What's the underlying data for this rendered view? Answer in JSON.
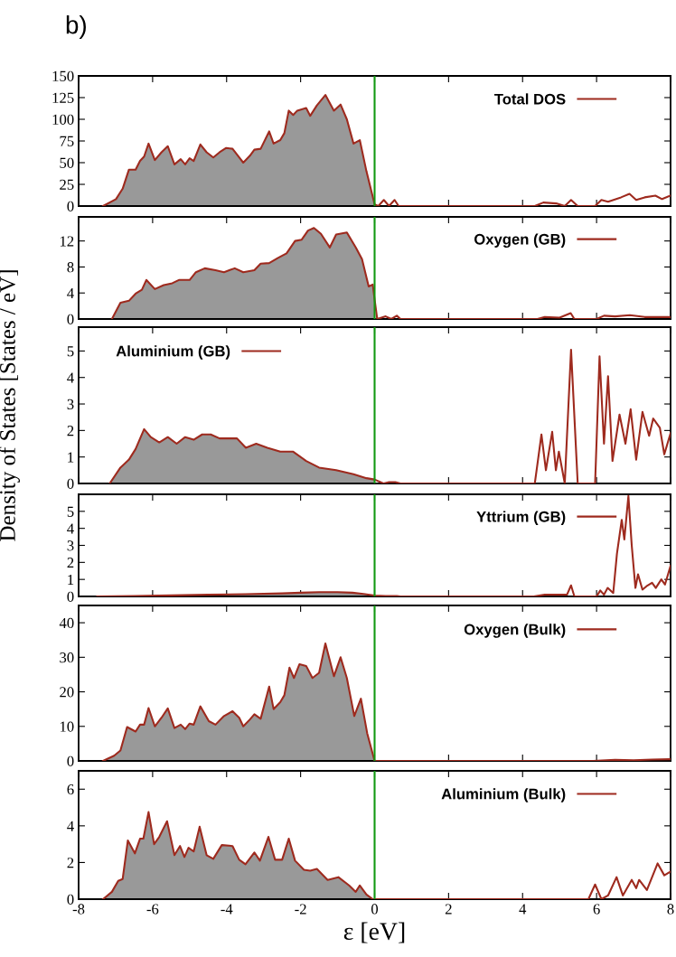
{
  "chart_data": [
    {
      "type": "line",
      "annotations": [
        "b)"
      ],
      "xlim": [
        -8,
        8
      ],
      "xticks": [
        -8,
        -6,
        -4,
        -2,
        0,
        2,
        4,
        6,
        8
      ],
      "ylim": [
        0,
        150
      ],
      "yticks": [
        0,
        25,
        50,
        75,
        100,
        125,
        150
      ],
      "tick_labels": "y",
      "legend": "top right",
      "grid": false,
      "ref_lines": [
        {
          "axis": "x",
          "value": 0,
          "color": "#119911"
        }
      ],
      "series": [
        {
          "type": "area",
          "color": "#999999",
          "x": [
            -7.34,
            -6.99,
            -6.81,
            -6.64,
            -6.46,
            -6.34,
            -6.23,
            -6.11,
            -5.94,
            -5.76,
            -5.59,
            -5.41,
            -5.24,
            -5.12,
            -5.0,
            -4.89,
            -4.71,
            -4.54,
            -4.36,
            -4.19,
            -4.01,
            -3.84,
            -3.66,
            -3.55,
            -3.37,
            -3.25,
            -3.08,
            -2.85,
            -2.73,
            -2.55,
            -2.44,
            -2.32,
            -2.2,
            -2.09,
            -1.85,
            -1.74,
            -1.56,
            -1.33,
            -1.1,
            -0.92,
            -0.75,
            -0.57,
            -0.4,
            -0.22,
            0.0
          ],
          "values": [
            0,
            8,
            20,
            42,
            42,
            52,
            57,
            72,
            53,
            62,
            69,
            48,
            54,
            48,
            55,
            52,
            71,
            62,
            56,
            62,
            67,
            66,
            56,
            50,
            58,
            65,
            66,
            86,
            72,
            76,
            84,
            110,
            105,
            110,
            113,
            104,
            116,
            128,
            110,
            117,
            100,
            72,
            76,
            40,
            2
          ]
        },
        {
          "name": "Total DOS",
          "color": "#9e2a1e",
          "x": [
            -7.34,
            -6.99,
            -6.81,
            -6.64,
            -6.46,
            -6.34,
            -6.23,
            -6.11,
            -5.94,
            -5.76,
            -5.59,
            -5.41,
            -5.24,
            -5.12,
            -5.0,
            -4.89,
            -4.71,
            -4.54,
            -4.36,
            -4.19,
            -4.01,
            -3.84,
            -3.66,
            -3.55,
            -3.37,
            -3.25,
            -3.08,
            -2.85,
            -2.73,
            -2.55,
            -2.44,
            -2.32,
            -2.2,
            -2.09,
            -1.85,
            -1.74,
            -1.56,
            -1.33,
            -1.1,
            -0.92,
            -0.75,
            -0.57,
            -0.4,
            -0.22,
            0.0,
            0.1,
            0.25,
            0.39,
            0.54,
            0.65,
            4.33,
            4.56,
            4.91,
            5.14,
            5.31,
            5.49,
            5.96,
            6.13,
            6.31,
            6.66,
            6.89,
            7.07,
            7.3,
            7.59,
            7.77,
            8.0
          ],
          "values": [
            0,
            8,
            20,
            42,
            42,
            52,
            57,
            72,
            53,
            62,
            69,
            48,
            54,
            48,
            55,
            52,
            71,
            62,
            56,
            62,
            67,
            66,
            56,
            50,
            58,
            65,
            66,
            86,
            72,
            76,
            84,
            110,
            105,
            110,
            113,
            104,
            116,
            128,
            110,
            117,
            100,
            72,
            76,
            40,
            2,
            0,
            7,
            0,
            7,
            0,
            0,
            4,
            3,
            0,
            7,
            0,
            0,
            7,
            5,
            10,
            14,
            7,
            10,
            12,
            8,
            12
          ]
        }
      ]
    },
    {
      "type": "line",
      "xlim": [
        -8,
        8
      ],
      "xticks": [
        -8,
        -6,
        -4,
        -2,
        0,
        2,
        4,
        6,
        8
      ],
      "ylim": [
        0,
        15.7
      ],
      "yticks": [
        0,
        4,
        8,
        12
      ],
      "tick_labels": "y",
      "legend": "top right",
      "grid": false,
      "ref_lines": [
        {
          "axis": "x",
          "value": 0,
          "color": "#119911"
        }
      ],
      "series": [
        {
          "type": "area",
          "color": "#999999",
          "x": [
            -7.1,
            -6.87,
            -6.64,
            -6.46,
            -6.29,
            -6.17,
            -5.94,
            -5.7,
            -5.47,
            -5.29,
            -5.0,
            -4.83,
            -4.59,
            -4.3,
            -4.07,
            -3.78,
            -3.55,
            -3.25,
            -3.08,
            -2.85,
            -2.61,
            -2.38,
            -2.15,
            -1.97,
            -1.8,
            -1.64,
            -1.45,
            -1.21,
            -1.04,
            -0.75,
            -0.51,
            -0.34,
            -0.16,
            -0.05,
            0.0
          ],
          "values": [
            0,
            2.5,
            2.8,
            3.9,
            4.5,
            6.0,
            4.6,
            5.2,
            5.5,
            6.0,
            6.0,
            7.2,
            7.8,
            7.5,
            7.2,
            7.8,
            7.2,
            7.5,
            8.5,
            8.6,
            9.4,
            10.1,
            12.0,
            12.2,
            13.6,
            14.0,
            13.1,
            11.0,
            13.0,
            13.3,
            11.0,
            9.2,
            5.0,
            5.3,
            3.0
          ]
        },
        {
          "name": "Oxygen (GB)",
          "color": "#9e2a1e",
          "x": [
            -7.1,
            -6.87,
            -6.64,
            -6.46,
            -6.29,
            -6.17,
            -5.94,
            -5.7,
            -5.47,
            -5.29,
            -5.0,
            -4.83,
            -4.59,
            -4.3,
            -4.07,
            -3.78,
            -3.55,
            -3.25,
            -3.08,
            -2.85,
            -2.61,
            -2.38,
            -2.15,
            -1.97,
            -1.8,
            -1.64,
            -1.45,
            -1.21,
            -1.04,
            -0.75,
            -0.51,
            -0.34,
            -0.16,
            -0.05,
            0.0,
            0.07,
            0.3,
            0.45,
            0.6,
            0.7,
            4.4,
            4.6,
            5.0,
            5.3,
            5.4,
            6.0,
            6.2,
            6.5,
            6.9,
            7.3,
            8.0
          ],
          "values": [
            0,
            2.5,
            2.8,
            3.9,
            4.5,
            6.0,
            4.6,
            5.2,
            5.5,
            6.0,
            6.0,
            7.2,
            7.8,
            7.5,
            7.2,
            7.8,
            7.2,
            7.5,
            8.5,
            8.6,
            9.4,
            10.1,
            12.0,
            12.2,
            13.6,
            14.0,
            13.1,
            11.0,
            13.0,
            13.3,
            11.0,
            9.2,
            5.0,
            5.3,
            3.0,
            0,
            0.4,
            0,
            0.5,
            0,
            0,
            0.3,
            0.2,
            0.9,
            0,
            0,
            0.5,
            0.4,
            0.6,
            0.3,
            0.3
          ]
        }
      ]
    },
    {
      "type": "line",
      "ylabel": "Density of States [States / eV]",
      "xlim": [
        -8,
        8
      ],
      "xticks": [
        -8,
        -6,
        -4,
        -2,
        0,
        2,
        4,
        6,
        8
      ],
      "ylim": [
        0,
        5.9
      ],
      "yticks": [
        0,
        1,
        2,
        3,
        4,
        5
      ],
      "tick_labels": "y",
      "legend": "top left",
      "grid": false,
      "ref_lines": [
        {
          "axis": "x",
          "value": 0,
          "color": "#119911"
        }
      ],
      "series": [
        {
          "type": "area",
          "color": "#999999",
          "x": [
            -7.16,
            -6.87,
            -6.64,
            -6.46,
            -6.23,
            -6.05,
            -5.82,
            -5.59,
            -5.35,
            -5.12,
            -4.89,
            -4.66,
            -4.43,
            -4.19,
            -3.95,
            -3.72,
            -3.48,
            -3.2,
            -2.9,
            -2.55,
            -2.2,
            -1.85,
            -1.5,
            -1.04,
            -0.57,
            -0.22,
            0.0
          ],
          "values": [
            0,
            0.6,
            0.9,
            1.3,
            2.05,
            1.75,
            1.55,
            1.75,
            1.5,
            1.75,
            1.65,
            1.85,
            1.85,
            1.7,
            1.7,
            1.7,
            1.35,
            1.5,
            1.35,
            1.2,
            1.2,
            0.85,
            0.6,
            0.5,
            0.35,
            0.2,
            0.15
          ]
        },
        {
          "name": "Aluminium (GB)",
          "color": "#9e2a1e",
          "x": [
            -7.16,
            -6.87,
            -6.64,
            -6.46,
            -6.23,
            -6.05,
            -5.82,
            -5.59,
            -5.35,
            -5.12,
            -4.89,
            -4.66,
            -4.43,
            -4.19,
            -3.95,
            -3.72,
            -3.48,
            -3.2,
            -2.9,
            -2.55,
            -2.2,
            -1.85,
            -1.5,
            -1.04,
            -0.57,
            -0.22,
            0.0,
            0.24,
            0.39,
            0.56,
            0.7,
            4.33,
            4.51,
            4.63,
            4.8,
            4.9,
            4.98,
            5.14,
            5.31,
            5.49,
            5.96,
            6.08,
            6.2,
            6.31,
            6.43,
            6.62,
            6.78,
            6.92,
            7.07,
            7.24,
            7.42,
            7.53,
            7.71,
            7.83,
            8.0
          ],
          "values": [
            0,
            0.6,
            0.9,
            1.3,
            2.05,
            1.75,
            1.55,
            1.75,
            1.5,
            1.75,
            1.65,
            1.85,
            1.85,
            1.7,
            1.7,
            1.7,
            1.35,
            1.5,
            1.35,
            1.2,
            1.2,
            0.85,
            0.6,
            0.5,
            0.35,
            0.2,
            0.15,
            0,
            0.05,
            0.05,
            0,
            0,
            1.85,
            0.5,
            1.95,
            0.5,
            1.2,
            0,
            5.05,
            0,
            0,
            4.8,
            1.5,
            4.05,
            0.85,
            2.6,
            1.5,
            2.8,
            0.9,
            2.7,
            1.8,
            2.45,
            2.1,
            1.1,
            1.9
          ]
        }
      ]
    },
    {
      "type": "line",
      "xlim": [
        -8,
        8
      ],
      "xticks": [
        -8,
        -6,
        -4,
        -2,
        0,
        2,
        4,
        6,
        8
      ],
      "ylim": [
        0,
        6
      ],
      "yticks": [
        0,
        1,
        2,
        3,
        4,
        5
      ],
      "tick_labels": "y",
      "legend": "top right",
      "grid": false,
      "ref_lines": [
        {
          "axis": "x",
          "value": 0,
          "color": "#119911"
        }
      ],
      "series": [
        {
          "type": "area",
          "color": "#999999",
          "x": [
            -7.5,
            -6.5,
            -5.5,
            -4.5,
            -3.5,
            -2.5,
            -2.0,
            -1.5,
            -1.0,
            -0.6,
            -0.3,
            0.0
          ],
          "values": [
            0,
            0.03,
            0.06,
            0.1,
            0.13,
            0.18,
            0.22,
            0.25,
            0.25,
            0.22,
            0.15,
            0.05
          ]
        },
        {
          "name": "Yttrium (GB)",
          "color": "#9e2a1e",
          "x": [
            -7.5,
            -6.5,
            -5.5,
            -4.5,
            -3.5,
            -2.5,
            -2.0,
            -1.5,
            -1.0,
            -0.6,
            -0.3,
            0.0,
            0.3,
            0.6,
            0.7,
            4.3,
            4.6,
            5.0,
            5.2,
            5.31,
            5.4,
            6.0,
            6.1,
            6.2,
            6.3,
            6.45,
            6.55,
            6.68,
            6.75,
            6.86,
            6.95,
            7.05,
            7.12,
            7.24,
            7.35,
            7.5,
            7.6,
            7.75,
            7.85,
            8.0
          ],
          "values": [
            0,
            0.03,
            0.06,
            0.1,
            0.13,
            0.18,
            0.22,
            0.25,
            0.25,
            0.22,
            0.15,
            0.05,
            0.03,
            0.03,
            0,
            0,
            0.1,
            0.1,
            0.1,
            0.65,
            0,
            0,
            0.35,
            0.1,
            0.5,
            0.2,
            2.5,
            4.5,
            3.35,
            5.9,
            3.0,
            0.5,
            1.3,
            0.4,
            0.6,
            0.8,
            0.5,
            1.0,
            0.7,
            1.8
          ]
        }
      ]
    },
    {
      "type": "line",
      "xlim": [
        -8,
        8
      ],
      "xticks": [
        -8,
        -6,
        -4,
        -2,
        0,
        2,
        4,
        6,
        8
      ],
      "ylim": [
        0,
        45
      ],
      "yticks": [
        0,
        10,
        20,
        30,
        40
      ],
      "tick_labels": "y",
      "legend": "top right",
      "grid": false,
      "ref_lines": [
        {
          "axis": "x",
          "value": 0,
          "color": "#119911"
        }
      ],
      "series": [
        {
          "type": "area",
          "color": "#999999",
          "x": [
            -7.34,
            -7.04,
            -6.87,
            -6.69,
            -6.46,
            -6.34,
            -6.23,
            -6.11,
            -5.94,
            -5.76,
            -5.59,
            -5.41,
            -5.24,
            -5.12,
            -5.0,
            -4.89,
            -4.71,
            -4.48,
            -4.3,
            -4.07,
            -3.84,
            -3.66,
            -3.55,
            -3.37,
            -3.25,
            -3.08,
            -2.85,
            -2.73,
            -2.55,
            -2.44,
            -2.3,
            -2.18,
            -2.03,
            -1.85,
            -1.68,
            -1.5,
            -1.33,
            -1.1,
            -0.92,
            -0.75,
            -0.55,
            -0.37,
            -0.2,
            0.0
          ],
          "values": [
            0,
            1.5,
            3,
            9.8,
            8.5,
            10.5,
            10.5,
            15.3,
            10,
            12.5,
            15.2,
            9.5,
            10.5,
            9.2,
            10.8,
            10.5,
            15.8,
            11.5,
            10.5,
            13,
            14.4,
            12.5,
            10,
            12,
            13.5,
            12.2,
            21.5,
            15,
            17,
            19,
            27,
            24,
            28,
            27.5,
            24,
            25.5,
            34,
            24.5,
            30,
            24,
            13,
            18,
            8,
            0
          ]
        },
        {
          "name": "Oxygen (Bulk)",
          "color": "#9e2a1e",
          "x": [
            -7.34,
            -7.04,
            -6.87,
            -6.69,
            -6.46,
            -6.34,
            -6.23,
            -6.11,
            -5.94,
            -5.76,
            -5.59,
            -5.41,
            -5.24,
            -5.12,
            -5.0,
            -4.89,
            -4.71,
            -4.48,
            -4.3,
            -4.07,
            -3.84,
            -3.66,
            -3.55,
            -3.37,
            -3.25,
            -3.08,
            -2.85,
            -2.73,
            -2.55,
            -2.44,
            -2.3,
            -2.18,
            -2.03,
            -1.85,
            -1.68,
            -1.5,
            -1.33,
            -1.1,
            -0.92,
            -0.75,
            -0.55,
            -0.37,
            -0.2,
            0.0,
            5.9,
            6.5,
            7.0,
            7.5,
            8.0
          ],
          "values": [
            0,
            1.5,
            3,
            9.8,
            8.5,
            10.5,
            10.5,
            15.3,
            10,
            12.5,
            15.2,
            9.5,
            10.5,
            9.2,
            10.8,
            10.5,
            15.8,
            11.5,
            10.5,
            13,
            14.4,
            12.5,
            10,
            12,
            13.5,
            12.2,
            21.5,
            15,
            17,
            19,
            27,
            24,
            28,
            27.5,
            24,
            25.5,
            34,
            24.5,
            30,
            24,
            13,
            18,
            8,
            0,
            0,
            0.3,
            0.2,
            0.4,
            0.5
          ]
        }
      ]
    },
    {
      "type": "line",
      "xlabel": "ε [eV]",
      "xlim": [
        -8,
        8
      ],
      "xticks": [
        -8,
        -6,
        -4,
        -2,
        0,
        2,
        4,
        6,
        8
      ],
      "ylim": [
        0,
        7
      ],
      "yticks": [
        0,
        2,
        4,
        6
      ],
      "legend": "top right",
      "grid": false,
      "ref_lines": [
        {
          "axis": "x",
          "value": 0,
          "color": "#119911"
        }
      ],
      "series": [
        {
          "type": "area",
          "color": "#999999",
          "x": [
            -7.34,
            -7.1,
            -6.93,
            -6.81,
            -6.67,
            -6.48,
            -6.34,
            -6.25,
            -6.11,
            -5.96,
            -5.82,
            -5.61,
            -5.41,
            -5.26,
            -5.14,
            -5.03,
            -4.89,
            -4.73,
            -4.54,
            -4.36,
            -4.13,
            -3.84,
            -3.66,
            -3.49,
            -3.25,
            -3.1,
            -2.87,
            -2.69,
            -2.5,
            -2.32,
            -2.15,
            -1.91,
            -1.74,
            -1.56,
            -1.27,
            -0.98,
            -0.69,
            -0.51,
            -0.4,
            -0.22,
            -0.05
          ],
          "values": [
            0,
            0.4,
            1.0,
            1.1,
            3.2,
            2.5,
            3.3,
            3.3,
            4.75,
            3.0,
            3.4,
            4.25,
            2.4,
            2.9,
            2.3,
            2.8,
            2.6,
            3.95,
            2.4,
            2.2,
            2.95,
            2.9,
            2.15,
            1.9,
            2.55,
            2.1,
            3.4,
            2.15,
            2.15,
            3.3,
            2.1,
            1.6,
            1.55,
            1.65,
            1.05,
            1.2,
            0.75,
            0.4,
            0.75,
            0.25,
            0
          ]
        },
        {
          "name": "Aluminium (Bulk)",
          "color": "#9e2a1e",
          "x": [
            -7.34,
            -7.1,
            -6.93,
            -6.81,
            -6.67,
            -6.48,
            -6.34,
            -6.25,
            -6.11,
            -5.96,
            -5.82,
            -5.61,
            -5.41,
            -5.26,
            -5.14,
            -5.03,
            -4.89,
            -4.73,
            -4.54,
            -4.36,
            -4.13,
            -3.84,
            -3.66,
            -3.49,
            -3.25,
            -3.1,
            -2.87,
            -2.69,
            -2.5,
            -2.32,
            -2.15,
            -1.91,
            -1.74,
            -1.56,
            -1.27,
            -0.98,
            -0.69,
            -0.51,
            -0.4,
            -0.22,
            -0.05,
            5.78,
            5.96,
            6.13,
            6.31,
            6.54,
            6.71,
            6.95,
            7.07,
            7.15,
            7.36,
            7.65,
            7.83,
            8.0
          ],
          "values": [
            0,
            0.4,
            1.0,
            1.1,
            3.2,
            2.5,
            3.3,
            3.3,
            4.75,
            3.0,
            3.4,
            4.25,
            2.4,
            2.9,
            2.3,
            2.8,
            2.6,
            3.95,
            2.4,
            2.2,
            2.95,
            2.9,
            2.15,
            1.9,
            2.55,
            2.1,
            3.4,
            2.15,
            2.15,
            3.3,
            2.1,
            1.6,
            1.55,
            1.65,
            1.05,
            1.2,
            0.75,
            0.4,
            0.75,
            0.25,
            0,
            0,
            0.8,
            0,
            0.2,
            1.2,
            0.2,
            1.05,
            0.6,
            1.05,
            0.5,
            1.95,
            1.3,
            1.5
          ]
        }
      ]
    }
  ]
}
